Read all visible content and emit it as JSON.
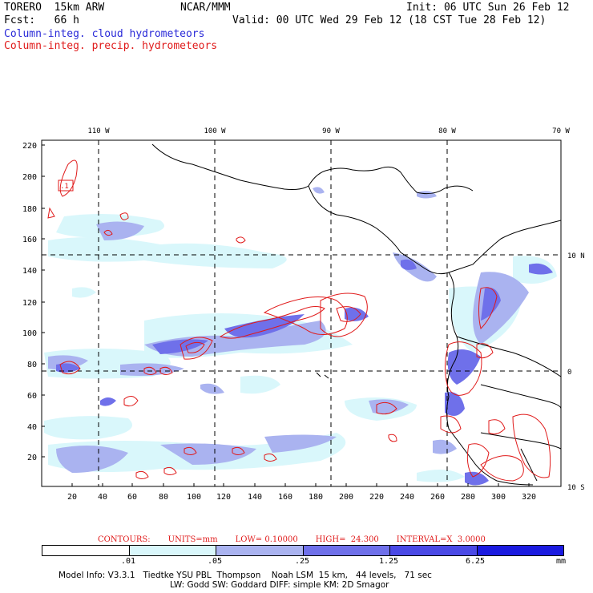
{
  "header": {
    "model": "TORERO  15km ARW",
    "org": "NCAR/MMM",
    "init": "Init: 06 UTC Sun 26 Feb 12",
    "fcst": "Fcst:   66 h",
    "valid": "Valid: 00 UTC Wed 29 Feb 12 (18 CST Tue 28 Feb 12)",
    "field_cloud": "Column-integ. cloud hydrometeors",
    "field_precip": "Column-integ. precip. hydrometeors"
  },
  "axes": {
    "lon_labels": [
      "110 W",
      "100 W",
      "90 W",
      "80 W",
      "70 W"
    ],
    "lat_labels": [
      "10 N",
      "0",
      "10 S"
    ],
    "y_ticks": [
      "220",
      "200",
      "180",
      "160",
      "140",
      "120",
      "100",
      "80",
      "60",
      "40",
      "20"
    ],
    "x_ticks": [
      "20",
      "40",
      "60",
      "80",
      "100",
      "120",
      "140",
      "160",
      "180",
      "200",
      "220",
      "240",
      "260",
      "280",
      "300",
      "320"
    ],
    "box_label": ".1"
  },
  "contours": {
    "label": "CONTOURS:",
    "units": "UNITS=mm",
    "low": "LOW= 0.10000",
    "high": "HIGH=  24.300",
    "interval": "INTERVAL=X  3.0000"
  },
  "colorbar": {
    "labels": [
      ".01",
      ".05",
      ".25",
      "1.25",
      "6.25"
    ],
    "unit": "mm",
    "colors": [
      "#ffffff",
      "#d9f7fb",
      "#aab3f0",
      "#6f70ea",
      "#4a49e6",
      "#1a1ae0"
    ]
  },
  "model_info": {
    "line1": "Model Info: V3.3.1   Tiedtke YSU PBL  Thompson    Noah LSM  15 km,   44 levels,   71 sec",
    "line2": "LW: Godd SW: Goddard DIFF: simple KM: 2D Smagor"
  },
  "colors": {
    "cloud_light": "#d9f7fb",
    "cloud_mid": "#aab3f0",
    "cloud_dark": "#6f70ea",
    "precip_contour": "#e01a1a"
  }
}
